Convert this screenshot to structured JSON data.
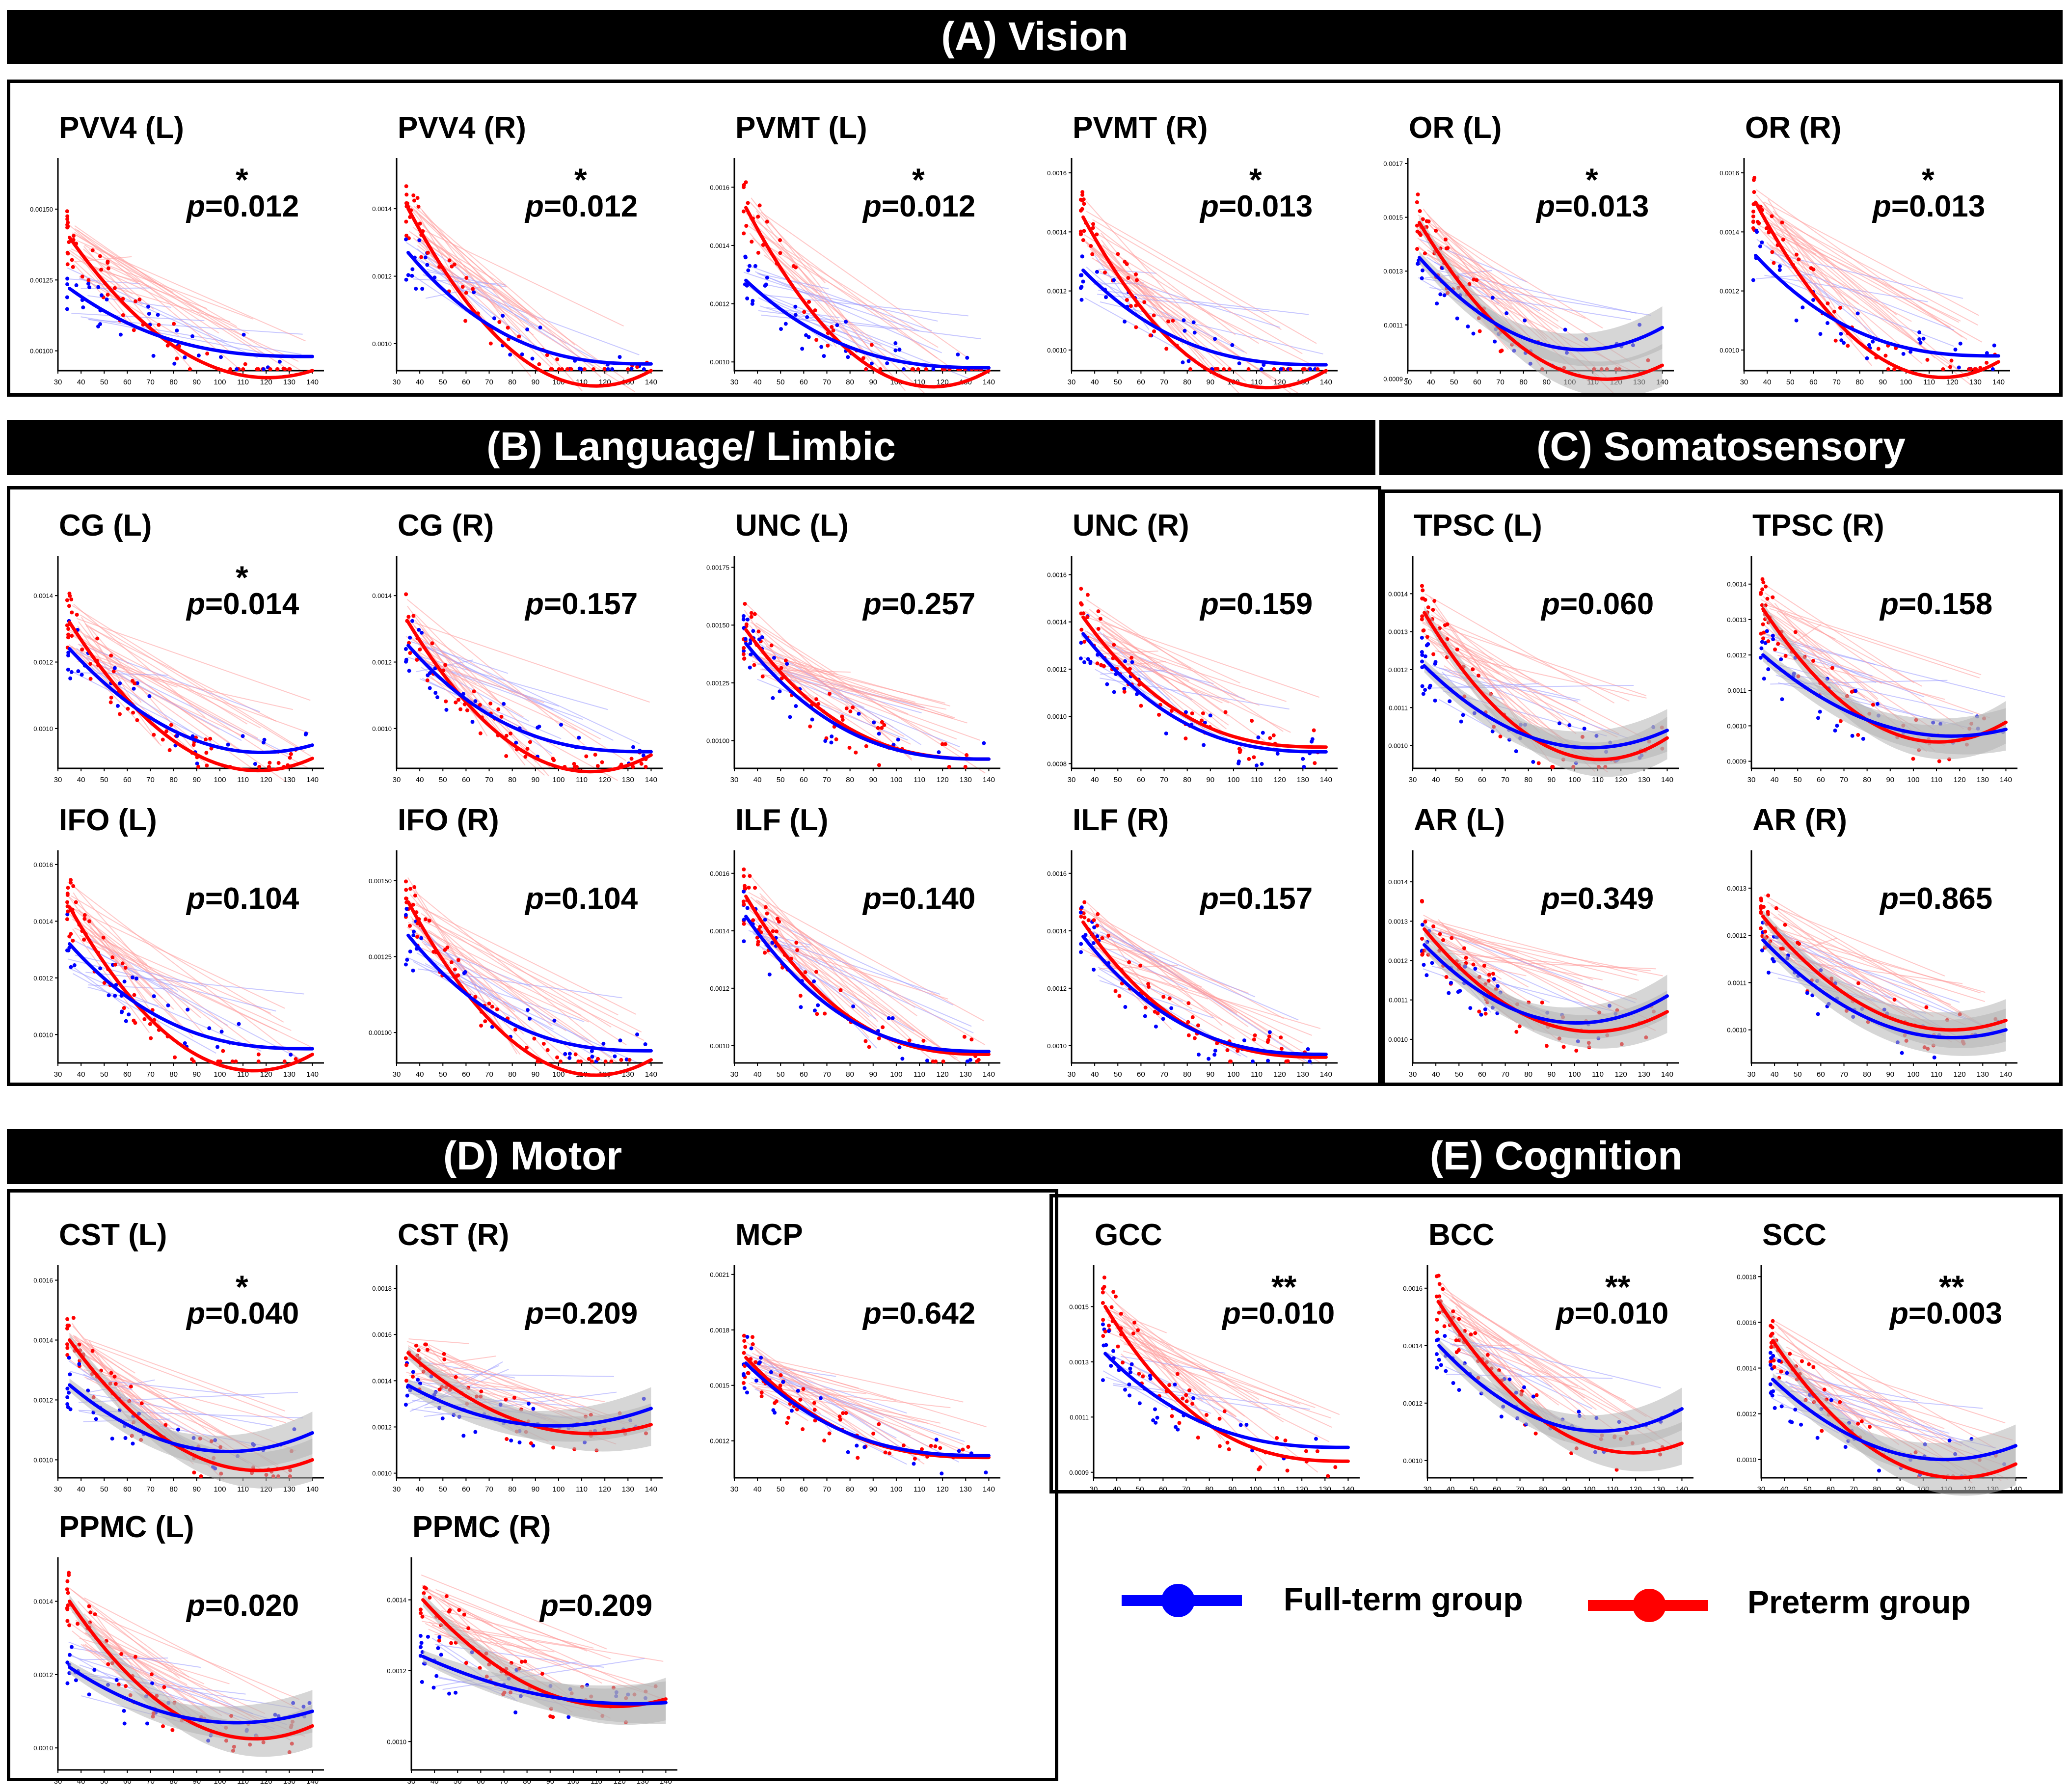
{
  "colors": {
    "fullterm": "#0000ff",
    "preterm": "#ff0000",
    "band": "#b5b5b5",
    "header_bg": "#000000",
    "header_text": "#ffffff"
  },
  "x_ticks": [
    "30",
    "40",
    "50",
    "60",
    "70",
    "80",
    "90",
    "100",
    "110",
    "120",
    "130",
    "140"
  ],
  "sections": {
    "vision": "(A) Vision",
    "language": "(B) Language/ Limbic",
    "somato": "(C) Somatosensory",
    "motor": "(D) Motor",
    "cognition": "(E) Cognition"
  },
  "legend": {
    "fullterm": "Full-term group",
    "preterm": "Preterm group"
  },
  "chart_data": [
    {
      "type": "scatter",
      "title": "PVV4 (L)",
      "stars": "*",
      "p": "0.012",
      "yticks": [
        "0.00100",
        "0.00125",
        "0.00150"
      ],
      "yvals": [
        0.001,
        0.00125,
        0.0015
      ],
      "ylim": [
        0.00093,
        0.00168
      ],
      "xlim": [
        30,
        145
      ],
      "fullterm": [
        0.00122,
        0.00098
      ],
      "preterm": [
        0.0014,
        0.00098,
        0.00093
      ],
      "band": false
    },
    {
      "type": "scatter",
      "title": "PVV4 (R)",
      "stars": "*",
      "p": "0.012",
      "yticks": [
        "0.0010",
        "0.0012",
        "0.0014"
      ],
      "yvals": [
        0.001,
        0.0012,
        0.0014
      ],
      "ylim": [
        0.00092,
        0.00155
      ],
      "xlim": [
        30,
        145
      ],
      "fullterm": [
        0.00127,
        0.00094
      ],
      "preterm": [
        0.0014,
        0.00094,
        0.00092
      ],
      "band": false
    },
    {
      "type": "scatter",
      "title": "PVMT (L)",
      "stars": "*",
      "p": "0.012",
      "yticks": [
        "0.0010",
        "0.0012",
        "0.0014",
        "0.0016"
      ],
      "yvals": [
        0.001,
        0.0012,
        0.0014,
        0.0016
      ],
      "ylim": [
        0.00097,
        0.0017
      ],
      "xlim": [
        30,
        145
      ],
      "fullterm": [
        0.00128,
        0.00098
      ],
      "preterm": [
        0.00153,
        0.00099,
        0.00097
      ],
      "band": false
    },
    {
      "type": "scatter",
      "title": "PVMT (R)",
      "stars": "*",
      "p": "0.013",
      "yticks": [
        "0.0010",
        "0.0012",
        "0.0014",
        "0.0016"
      ],
      "yvals": [
        0.001,
        0.0012,
        0.0014,
        0.0016
      ],
      "ylim": [
        0.00093,
        0.00165
      ],
      "xlim": [
        30,
        145
      ],
      "fullterm": [
        0.00127,
        0.00095
      ],
      "preterm": [
        0.00145,
        0.00094,
        0.00093
      ],
      "band": false
    },
    {
      "type": "scatter",
      "title": "OR (L)",
      "stars": "*",
      "p": "0.013",
      "yticks": [
        "0.0009",
        "0.0011",
        "0.0013",
        "0.0015",
        "0.0017"
      ],
      "yvals": [
        0.0009,
        0.0011,
        0.0013,
        0.0015,
        0.0017
      ],
      "ylim": [
        0.00093,
        0.00172
      ],
      "xlim": [
        30,
        145
      ],
      "fullterm": [
        0.00135,
        0.00103,
        0.00109
      ],
      "preterm": [
        0.00148,
        0.00097,
        0.00095
      ],
      "band": true
    },
    {
      "type": "scatter",
      "title": "OR (R)",
      "stars": "*",
      "p": "0.013",
      "yticks": [
        "0.0010",
        "0.0012",
        "0.0014",
        "0.0016"
      ],
      "yvals": [
        0.001,
        0.0012,
        0.0014,
        0.0016
      ],
      "ylim": [
        0.00093,
        0.00165
      ],
      "xlim": [
        30,
        145
      ],
      "fullterm": [
        0.00132,
        0.00098
      ],
      "preterm": [
        0.0015,
        0.00098,
        0.00096
      ],
      "band": false
    },
    {
      "type": "scatter",
      "title": "CG (L)",
      "stars": "*",
      "p": "0.014",
      "yticks": [
        "0.0010",
        "0.0012",
        "0.0014"
      ],
      "yvals": [
        0.001,
        0.0012,
        0.0014
      ],
      "ylim": [
        0.00088,
        0.00152
      ],
      "xlim": [
        30,
        145
      ],
      "fullterm": [
        0.00124,
        0.00097,
        0.00095
      ],
      "preterm": [
        0.00132,
        0.00093,
        0.00091
      ],
      "band": false
    },
    {
      "type": "scatter",
      "title": "CG (R)",
      "stars": "",
      "p": "0.157",
      "yticks": [
        "0.0010",
        "0.0012",
        "0.0014"
      ],
      "yvals": [
        0.001,
        0.0012,
        0.0014
      ],
      "ylim": [
        0.00088,
        0.00152
      ],
      "xlim": [
        30,
        145
      ],
      "fullterm": [
        0.00125,
        0.00093
      ],
      "preterm": [
        0.00132,
        0.00092,
        0.00092
      ],
      "band": false
    },
    {
      "type": "scatter",
      "title": "UNC (L)",
      "stars": "",
      "p": "0.257",
      "yticks": [
        "0.00100",
        "0.00125",
        "0.00150",
        "0.00175"
      ],
      "yvals": [
        0.001,
        0.00125,
        0.0015,
        0.00175
      ],
      "ylim": [
        0.00088,
        0.0018
      ],
      "xlim": [
        30,
        145
      ],
      "fullterm": [
        0.00142,
        0.00092
      ],
      "preterm": [
        0.00148,
        0.00092
      ],
      "band": false
    },
    {
      "type": "scatter",
      "title": "UNC (R)",
      "stars": "",
      "p": "0.159",
      "yticks": [
        "0.0008",
        "0.0010",
        "0.0012",
        "0.0014",
        "0.0016"
      ],
      "yvals": [
        0.0008,
        0.001,
        0.0012,
        0.0014,
        0.0016
      ],
      "ylim": [
        0.00078,
        0.00168
      ],
      "xlim": [
        30,
        145
      ],
      "fullterm": [
        0.00135,
        0.00085
      ],
      "preterm": [
        0.00142,
        0.00087
      ],
      "band": false
    },
    {
      "type": "scatter",
      "title": "TPSC (L)",
      "stars": "",
      "p": "0.060",
      "yticks": [
        "0.0010",
        "0.0011",
        "0.0012",
        "0.0013",
        "0.0014"
      ],
      "yvals": [
        0.001,
        0.0011,
        0.0012,
        0.0013,
        0.0014
      ],
      "ylim": [
        0.00094,
        0.0015
      ],
      "xlim": [
        30,
        145
      ],
      "fullterm": [
        0.00121,
        0.00101,
        0.00104
      ],
      "preterm": [
        0.00135,
        0.001,
        0.00102
      ],
      "band": true
    },
    {
      "type": "scatter",
      "title": "TPSC (R)",
      "stars": "",
      "p": "0.158",
      "yticks": [
        "0.0009",
        "0.0010",
        "0.0011",
        "0.0012",
        "0.0013",
        "0.0014"
      ],
      "yvals": [
        0.0009,
        0.001,
        0.0011,
        0.0012,
        0.0013,
        0.0014
      ],
      "ylim": [
        0.00088,
        0.00148
      ],
      "xlim": [
        30,
        145
      ],
      "fullterm": [
        0.0012,
        0.001,
        0.00099
      ],
      "preterm": [
        0.00133,
        0.00099,
        0.00101
      ],
      "band": true
    },
    {
      "type": "scatter",
      "title": "IFO (L)",
      "stars": "",
      "p": "0.104",
      "yticks": [
        "0.0010",
        "0.0012",
        "0.0014",
        "0.0016"
      ],
      "yvals": [
        0.001,
        0.0012,
        0.0014,
        0.0016
      ],
      "ylim": [
        0.0009,
        0.00165
      ],
      "xlim": [
        30,
        145
      ],
      "fullterm": [
        0.00132,
        0.00095
      ],
      "preterm": [
        0.00145,
        0.00094,
        0.00093
      ],
      "band": false
    },
    {
      "type": "scatter",
      "title": "IFO (R)",
      "stars": "",
      "p": "0.104",
      "yticks": [
        "0.00100",
        "0.00125",
        "0.00150"
      ],
      "yvals": [
        0.001,
        0.00125,
        0.0015
      ],
      "ylim": [
        0.0009,
        0.0016
      ],
      "xlim": [
        30,
        145
      ],
      "fullterm": [
        0.00132,
        0.00094
      ],
      "preterm": [
        0.00143,
        0.00093,
        0.00091
      ],
      "band": false
    },
    {
      "type": "scatter",
      "title": "ILF (L)",
      "stars": "",
      "p": "0.140",
      "yticks": [
        "0.0010",
        "0.0012",
        "0.0014",
        "0.0016"
      ],
      "yvals": [
        0.001,
        0.0012,
        0.0014,
        0.0016
      ],
      "ylim": [
        0.00094,
        0.00168
      ],
      "xlim": [
        30,
        145
      ],
      "fullterm": [
        0.00145,
        0.00098
      ],
      "preterm": [
        0.00152,
        0.00097
      ],
      "band": false
    },
    {
      "type": "scatter",
      "title": "ILF (R)",
      "stars": "",
      "p": "0.157",
      "yticks": [
        "0.0010",
        "0.0012",
        "0.0014",
        "0.0016"
      ],
      "yvals": [
        0.001,
        0.0012,
        0.0014,
        0.0016
      ],
      "ylim": [
        0.00094,
        0.00168
      ],
      "xlim": [
        30,
        145
      ],
      "fullterm": [
        0.00138,
        0.00097
      ],
      "preterm": [
        0.00143,
        0.00096
      ],
      "band": false
    },
    {
      "type": "scatter",
      "title": "AR (L)",
      "stars": "",
      "p": "0.349",
      "yticks": [
        "0.0010",
        "0.0011",
        "0.0012",
        "0.0013",
        "0.0014"
      ],
      "yvals": [
        0.001,
        0.0011,
        0.0012,
        0.0013,
        0.0014
      ],
      "ylim": [
        0.00094,
        0.00148
      ],
      "xlim": [
        30,
        145
      ],
      "fullterm": [
        0.00124,
        0.00105,
        0.00111
      ],
      "preterm": [
        0.00128,
        0.00104,
        0.00107
      ],
      "band": true
    },
    {
      "type": "scatter",
      "title": "AR (R)",
      "stars": "",
      "p": "0.865",
      "yticks": [
        "0.0010",
        "0.0011",
        "0.0012",
        "0.0013"
      ],
      "yvals": [
        0.001,
        0.0011,
        0.0012,
        0.0013
      ],
      "ylim": [
        0.00093,
        0.00138
      ],
      "xlim": [
        30,
        145
      ],
      "fullterm": [
        0.00119,
        0.00101,
        0.001
      ],
      "preterm": [
        0.00124,
        0.00103,
        0.00102
      ],
      "band": true
    },
    {
      "type": "scatter",
      "title": "CST (L)",
      "stars": "*",
      "p": "0.040",
      "yticks": [
        "0.0010",
        "0.0012",
        "0.0014",
        "0.0016"
      ],
      "yvals": [
        0.001,
        0.0012,
        0.0014,
        0.0016
      ],
      "ylim": [
        0.00094,
        0.00165
      ],
      "xlim": [
        30,
        145
      ],
      "fullterm": [
        0.00125,
        0.00104,
        0.00109
      ],
      "preterm": [
        0.0014,
        0.00102,
        0.001
      ],
      "band": true
    },
    {
      "type": "scatter",
      "title": "CST (R)",
      "stars": "",
      "p": "0.209",
      "yticks": [
        "0.0010",
        "0.0012",
        "0.0014",
        "0.0016",
        "0.0018"
      ],
      "yvals": [
        0.001,
        0.0012,
        0.0014,
        0.0016,
        0.0018
      ],
      "ylim": [
        0.00098,
        0.0019
      ],
      "xlim": [
        30,
        145
      ],
      "fullterm": [
        0.00138,
        0.00121,
        0.00128
      ],
      "preterm": [
        0.00152,
        0.00121,
        0.00121
      ],
      "band": true
    },
    {
      "type": "scatter",
      "title": "MCP",
      "stars": "",
      "p": "0.642",
      "yticks": [
        "0.0012",
        "0.0015",
        "0.0018",
        "0.0021"
      ],
      "yvals": [
        0.0012,
        0.0015,
        0.0018,
        0.0021
      ],
      "ylim": [
        0.001,
        0.00215
      ],
      "xlim": [
        30,
        145
      ],
      "fullterm": [
        0.00162,
        0.00112
      ],
      "preterm": [
        0.00165,
        0.00111
      ],
      "band": false
    },
    {
      "type": "scatter",
      "title": "PPMC (L)",
      "stars": "",
      "p": "0.020",
      "yticks": [
        "0.0010",
        "0.0012",
        "0.0014"
      ],
      "yvals": [
        0.001,
        0.0012,
        0.0014
      ],
      "ylim": [
        0.00094,
        0.00152
      ],
      "xlim": [
        30,
        145
      ],
      "fullterm": [
        0.00122,
        0.00108,
        0.0011
      ],
      "preterm": [
        0.0014,
        0.00107,
        0.00106
      ],
      "band": true
    },
    {
      "type": "scatter",
      "title": "PPMC (R)",
      "stars": "",
      "p": "0.209",
      "yticks": [
        "0.0010",
        "0.0012",
        "0.0014"
      ],
      "yvals": [
        0.001,
        0.0012,
        0.0014
      ],
      "ylim": [
        0.00092,
        0.00152
      ],
      "xlim": [
        30,
        145
      ],
      "fullterm": [
        0.00124,
        0.00113,
        0.00111
      ],
      "preterm": [
        0.0014,
        0.00114,
        0.00112
      ],
      "band": true
    },
    {
      "type": "scatter",
      "title": "GCC",
      "stars": "**",
      "p": "0.010",
      "yticks": [
        "0.0009",
        "0.0011",
        "0.0013",
        "0.0015"
      ],
      "yvals": [
        0.0009,
        0.0011,
        0.0013,
        0.0015
      ],
      "ylim": [
        0.00088,
        0.00165
      ],
      "xlim": [
        30,
        145
      ],
      "fullterm": [
        0.00133,
        0.00099
      ],
      "preterm": [
        0.0015,
        0.00094
      ],
      "band": false
    },
    {
      "type": "scatter",
      "title": "BCC",
      "stars": "**",
      "p": "0.010",
      "yticks": [
        "0.0010",
        "0.0012",
        "0.0014",
        "0.0016"
      ],
      "yvals": [
        0.001,
        0.0012,
        0.0014,
        0.0016
      ],
      "ylim": [
        0.00094,
        0.00168
      ],
      "xlim": [
        30,
        145
      ],
      "fullterm": [
        0.0014,
        0.00112,
        0.00118
      ],
      "preterm": [
        0.00155,
        0.0011,
        0.00106
      ],
      "band": true
    },
    {
      "type": "scatter",
      "title": "SCC",
      "stars": "**",
      "p": "0.003",
      "yticks": [
        "0.0010",
        "0.0012",
        "0.0014",
        "0.0016",
        "0.0018"
      ],
      "yvals": [
        0.001,
        0.0012,
        0.0014,
        0.0016,
        0.0018
      ],
      "ylim": [
        0.00092,
        0.00185
      ],
      "xlim": [
        30,
        145
      ],
      "fullterm": [
        0.00135,
        0.00103,
        0.00106
      ],
      "preterm": [
        0.00152,
        0.00099,
        0.00098
      ],
      "band": true
    }
  ]
}
